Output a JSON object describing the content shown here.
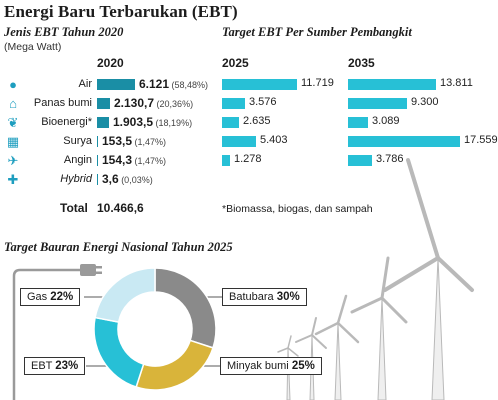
{
  "title": "Energi Baru Terbarukan (EBT)",
  "left_section": {
    "title": "Jenis EBT Tahun 2020",
    "unit": "(Mega Watt)",
    "year_label": "2020"
  },
  "right_section": {
    "title": "Target EBT Per Sumber Pembangkit",
    "years": [
      "2025",
      "2035"
    ]
  },
  "chart_data": [
    {
      "type": "bar",
      "title": "Jenis EBT Tahun 2020",
      "unit": "(Mega Watt)",
      "categories": [
        "Air",
        "Panas bumi",
        "Bioenergi*",
        "Surya",
        "Angin",
        "Hybrid"
      ],
      "series": [
        {
          "name": "2020",
          "values": [
            6121,
            2130.7,
            1903.5,
            153.5,
            154.3,
            3.6
          ],
          "value_labels": [
            "6.121",
            "2.130,7",
            "1.903,5",
            "153,5",
            "154,3",
            "3,6"
          ],
          "percent_labels": [
            "(58,48%)",
            "(20,36%)",
            "(18,19%)",
            "(1,47%)",
            "(1,47%)",
            "(0,03%)"
          ]
        }
      ],
      "total_label": "Total",
      "total_value": "10.466,6"
    },
    {
      "type": "bar",
      "title": "Target EBT Per Sumber Pembangkit",
      "categories": [
        "Air",
        "Panas bumi",
        "Bioenergi*",
        "Surya",
        "Angin"
      ],
      "series": [
        {
          "name": "2025",
          "values": [
            11719,
            3576,
            2635,
            5403,
            1278
          ],
          "value_labels": [
            "11.719",
            "3.576",
            "2.635",
            "5.403",
            "1.278"
          ]
        },
        {
          "name": "2035",
          "values": [
            13811,
            9300,
            3089,
            17559,
            3786
          ],
          "value_labels": [
            "13.811",
            "9.300",
            "3.089",
            "17.559",
            "3.786"
          ]
        }
      ],
      "footnote": "*Biomassa, biogas, dan sampah"
    },
    {
      "type": "pie",
      "title": "Target Bauran Energi Nasional Tahun 2025",
      "slices": [
        {
          "label": "Batubara",
          "value": 30,
          "value_label": "30%",
          "color": "#8a8a8a"
        },
        {
          "label": "Minyak bumi",
          "value": 25,
          "value_label": "25%",
          "color": "#d9b43a"
        },
        {
          "label": "EBT",
          "value": 23,
          "value_label": "23%",
          "color": "#27c0d6"
        },
        {
          "label": "Gas",
          "value": 22,
          "value_label": "22%",
          "color": "#c9e9f3"
        }
      ]
    }
  ],
  "colors": {
    "bar_2020": "#1a8ea5",
    "bar_target": "#27c0d6",
    "icon": "#1e9ebf"
  },
  "icons": [
    "water-drop-icon",
    "factory-icon",
    "leaf-icon",
    "solar-panel-icon",
    "wind-turbine-icon",
    "plus-icon"
  ]
}
